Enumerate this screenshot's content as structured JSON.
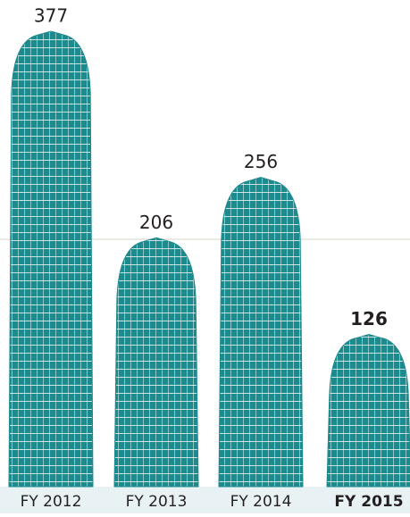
{
  "chart_data": {
    "type": "bar",
    "categories": [
      "FY 2012",
      "FY 2013",
      "FY 2014",
      "FY 2015"
    ],
    "values": [
      377,
      206,
      256,
      126
    ],
    "color": "#1d8a8e"
  }
}
